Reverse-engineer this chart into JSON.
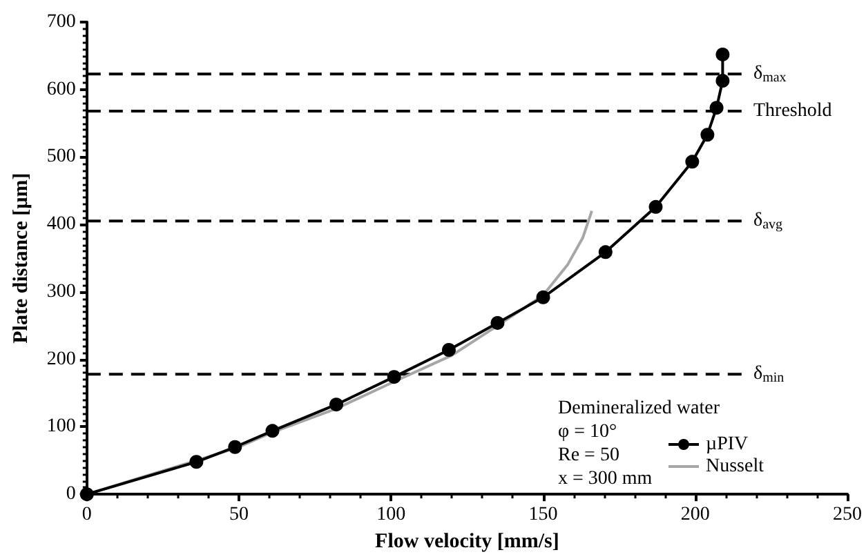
{
  "chart_data": {
    "type": "line",
    "xlabel": "Flow velocity [mm/s]",
    "ylabel": "Plate distance [µm]",
    "xlim": [
      0,
      250
    ],
    "xticks": [
      0,
      50,
      100,
      150,
      200,
      250
    ],
    "ylim": [
      0,
      700
    ],
    "yticks": [
      0,
      100,
      200,
      300,
      400,
      500,
      600,
      700
    ],
    "grid": false,
    "legend": "bottom right",
    "series": [
      {
        "name": "µPIV",
        "color": "#000000",
        "marker": "circle",
        "x": [
          0,
          36,
          48.7,
          61,
          82,
          101,
          119,
          135,
          150,
          170.5,
          187,
          199,
          204,
          207,
          209,
          209
        ],
        "values": [
          0,
          48,
          70,
          94,
          133,
          174,
          214,
          254,
          292,
          359,
          426,
          493,
          533,
          573,
          613,
          652
        ]
      },
      {
        "name": "Nusselt",
        "color": "#a6a6a6",
        "marker": "none",
        "x": [
          0,
          20,
          36,
          50,
          61,
          82,
          101,
          120,
          135,
          150,
          158,
          163,
          166
        ],
        "values": [
          0,
          28,
          50,
          70,
          92,
          127,
          167,
          206,
          250,
          295,
          340,
          380,
          420
        ]
      }
    ],
    "ref_lines": [
      {
        "axis": "y",
        "value": 623,
        "label": "δ$_{max}$",
        "line_style": "dashed",
        "color": "#000000"
      },
      {
        "axis": "y",
        "value": 568,
        "label": "Threshold",
        "line_style": "dashed",
        "color": "#000000"
      },
      {
        "axis": "y",
        "value": 405,
        "label": "δ$_{avg}$",
        "line_style": "dashed",
        "color": "#000000"
      },
      {
        "axis": "y",
        "value": 178,
        "label": "δ$_{min}$",
        "line_style": "dashed",
        "color": "#000000"
      }
    ],
    "annotations": [
      "Demineralized water",
      "φ = 10°",
      "Re = 50",
      "x = 300 mm"
    ]
  }
}
